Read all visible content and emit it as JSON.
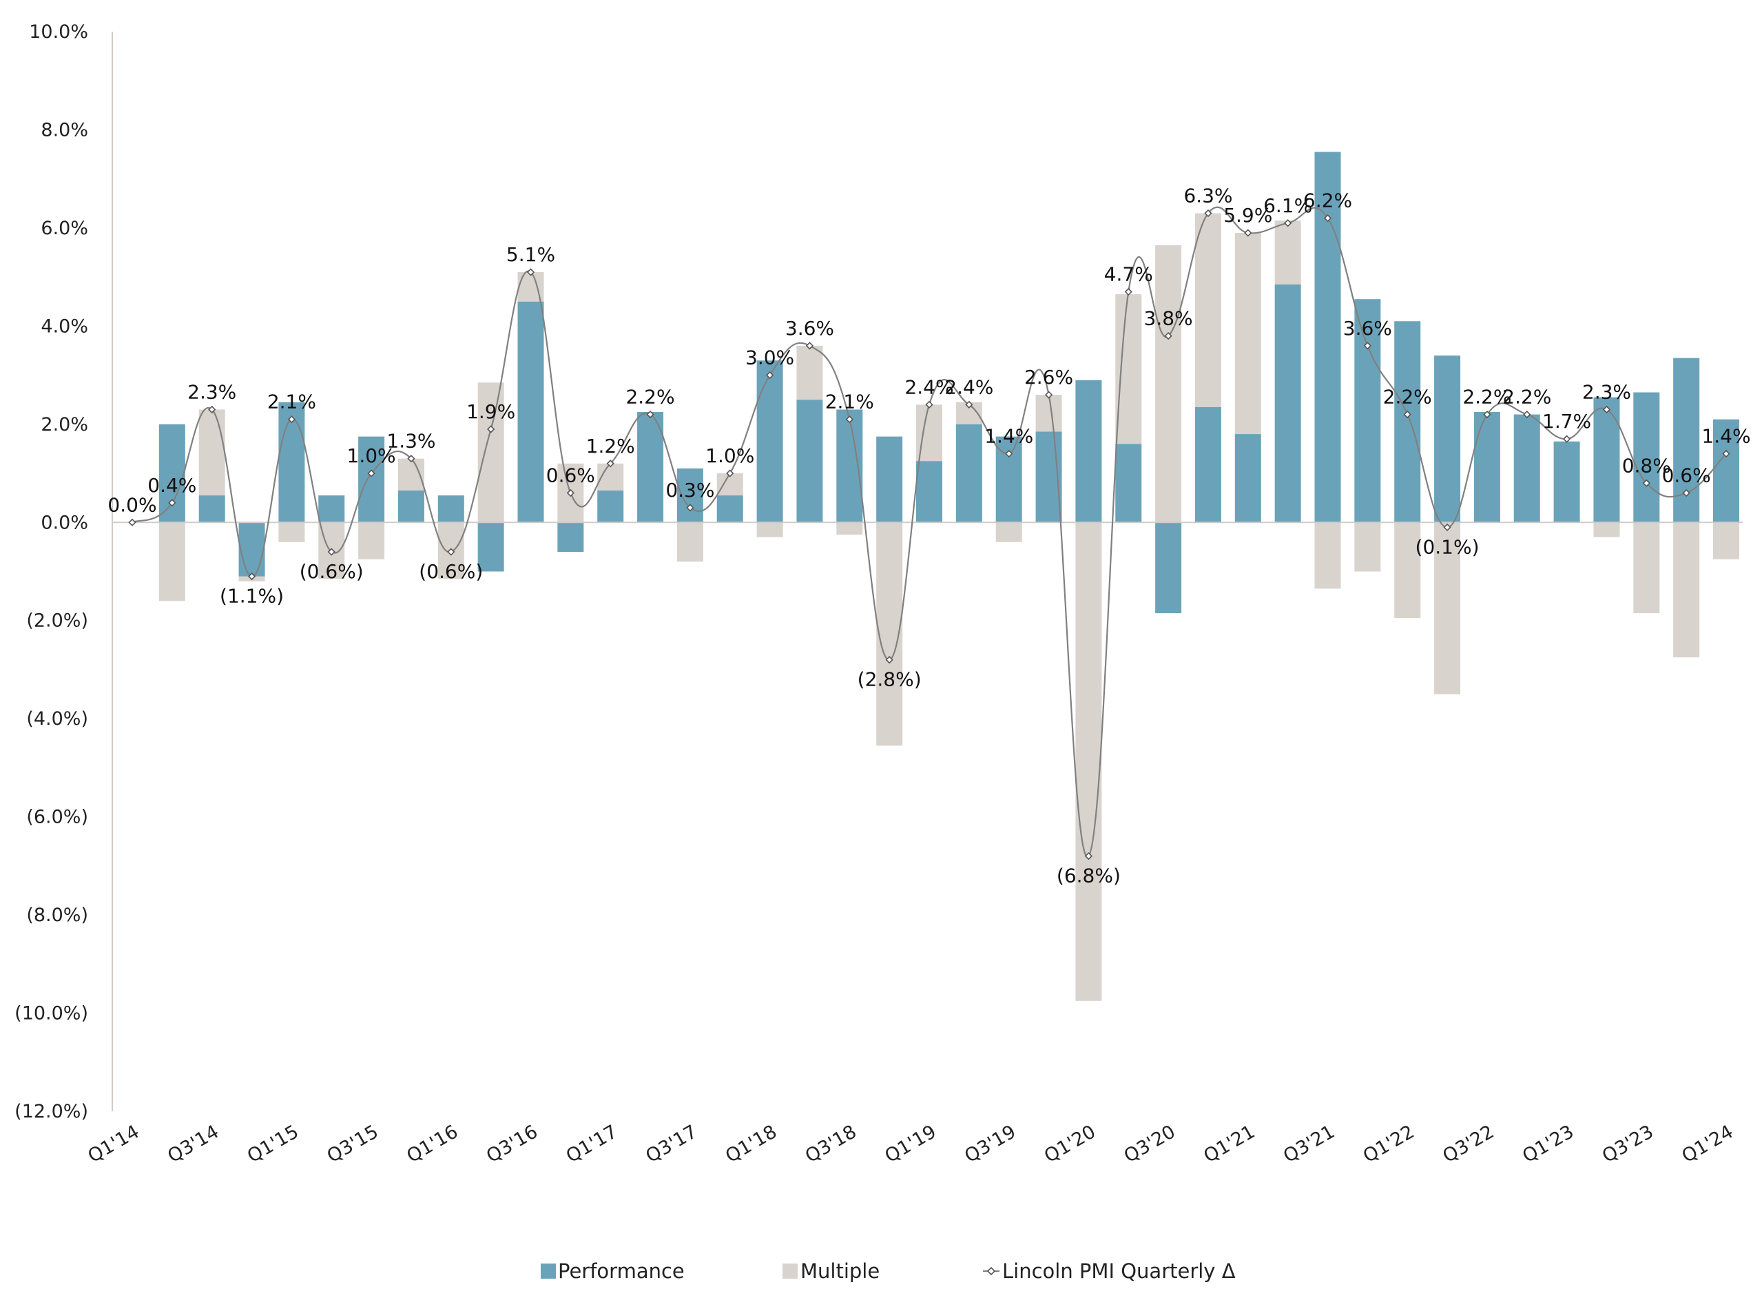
{
  "chart_data": {
    "type": "bar",
    "stacked": true,
    "colors": {
      "performance": "#6aa3b9",
      "multiple": "#d9d3ce",
      "line": "#808080",
      "axis": "#d0ccc8"
    },
    "ylim": [
      -12,
      10
    ],
    "y_ticks": [
      10,
      8,
      6,
      4,
      2,
      0,
      -2,
      -4,
      -6,
      -8,
      -10,
      -12
    ],
    "y_tick_labels": [
      "10.0%",
      "8.0%",
      "6.0%",
      "4.0%",
      "2.0%",
      "0.0%",
      "(2.0%)",
      "(4.0%)",
      "(6.0%)",
      "(8.0%)",
      "(10.0%)",
      "(12.0%)"
    ],
    "categories": [
      "Q1'14",
      "Q2'14",
      "Q3'14",
      "Q4'14",
      "Q1'15",
      "Q2'15",
      "Q3'15",
      "Q4'15",
      "Q1'16",
      "Q2'16",
      "Q3'16",
      "Q4'16",
      "Q1'17",
      "Q2'17",
      "Q3'17",
      "Q4'17",
      "Q1'18",
      "Q2'18",
      "Q3'18",
      "Q4'18",
      "Q1'19",
      "Q2'19",
      "Q3'19",
      "Q4'19",
      "Q1'20",
      "Q2'20",
      "Q3'20",
      "Q4'20",
      "Q1'21",
      "Q2'21",
      "Q3'21",
      "Q4'21",
      "Q1'22",
      "Q2'22",
      "Q3'22",
      "Q4'22",
      "Q1'23",
      "Q2'23",
      "Q3'23",
      "Q4'23",
      "Q1'24"
    ],
    "x_tick_labels": [
      "Q1'14",
      "Q3'14",
      "Q1'15",
      "Q3'15",
      "Q1'16",
      "Q3'16",
      "Q1'17",
      "Q3'17",
      "Q1'18",
      "Q3'18",
      "Q1'19",
      "Q3'19",
      "Q1'20",
      "Q3'20",
      "Q1'21",
      "Q3'21",
      "Q1'22",
      "Q3'22",
      "Q1'23",
      "Q3'23",
      "Q1'24"
    ],
    "series": [
      {
        "name": "Performance",
        "type": "bar",
        "values": [
          0,
          2.0,
          0.55,
          -1.1,
          2.45,
          0.55,
          1.75,
          0.65,
          0.55,
          -1.0,
          4.5,
          -0.6,
          0.65,
          2.25,
          1.1,
          0.55,
          3.3,
          2.5,
          2.3,
          1.75,
          1.25,
          2.0,
          1.75,
          1.85,
          2.9,
          1.6,
          -1.85,
          2.35,
          1.8,
          4.85,
          7.55,
          4.55,
          4.1,
          3.4,
          2.25,
          2.2,
          1.65,
          2.55,
          2.65,
          3.35,
          2.1
        ]
      },
      {
        "name": "Multiple",
        "type": "bar",
        "values": [
          0,
          -1.6,
          1.75,
          -0.1,
          -0.4,
          -1.15,
          -0.75,
          0.65,
          -1.15,
          2.85,
          0.6,
          1.2,
          0.55,
          0,
          -0.8,
          0.45,
          -0.3,
          1.1,
          -0.25,
          -4.55,
          1.15,
          0.45,
          -0.4,
          0.75,
          -9.75,
          3.05,
          5.65,
          3.95,
          4.1,
          1.3,
          -1.35,
          -1.0,
          -1.95,
          -3.5,
          0,
          0,
          0,
          -0.3,
          -1.85,
          -2.75,
          -0.75
        ]
      },
      {
        "name": "Lincoln PMI Quarterly Δ",
        "type": "line",
        "values": [
          0.0,
          0.4,
          2.3,
          -1.1,
          2.1,
          -0.6,
          1.0,
          1.3,
          -0.6,
          1.9,
          5.1,
          0.6,
          1.2,
          2.2,
          0.3,
          1.0,
          3.0,
          3.6,
          2.1,
          -2.8,
          2.4,
          2.4,
          1.4,
          2.6,
          -6.8,
          4.7,
          3.8,
          6.3,
          5.9,
          6.1,
          6.2,
          3.6,
          2.2,
          -0.1,
          2.2,
          2.2,
          1.7,
          2.3,
          0.8,
          0.6,
          1.4
        ],
        "labels": [
          "0.0%",
          "0.4%",
          "2.3%",
          "(1.1%)",
          "2.1%",
          "(0.6%)",
          "1.0%",
          "1.3%",
          "(0.6%)",
          "1.9%",
          "5.1%",
          "0.6%",
          "1.2%",
          "2.2%",
          "0.3%",
          "1.0%",
          "3.0%",
          "3.6%",
          "2.1%",
          "(2.8%)",
          "2.4%",
          "2.4%",
          "1.4%",
          "2.6%",
          "(6.8%)",
          "4.7%",
          "3.8%",
          "6.3%",
          "5.9%",
          "6.1%",
          "6.2%",
          "3.6%",
          "2.2%",
          "(0.1%)",
          "2.2%",
          "2.2%",
          "1.7%",
          "2.3%",
          "0.8%",
          "0.6%",
          "1.4%"
        ]
      }
    ],
    "legend": {
      "position": "bottom",
      "entries": [
        "Performance",
        "Multiple",
        "Lincoln PMI Quarterly Δ"
      ]
    },
    "grid": false,
    "title": "",
    "xlabel": "",
    "ylabel": ""
  }
}
